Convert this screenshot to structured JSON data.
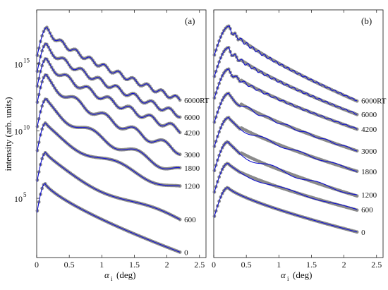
{
  "figure": {
    "ylabel": "intensity (arb. units)",
    "xlabel_symbol": "α",
    "xlabel_sub": "i",
    "xlabel_unit": "(deg)"
  },
  "colors": {
    "data": "#8a8a8a",
    "fit": "#1010d0",
    "axis": "#111111",
    "background": "#ffffff"
  },
  "chart_data": [
    {
      "type": "scatter",
      "panel_label": "(a)",
      "xlabel": "αi (deg)",
      "ylabel": "intensity (arb. units)",
      "xlim": [
        0,
        2.6
      ],
      "ylim_log10": [
        0.6,
        19
      ],
      "y_scale": "log",
      "x_ticks": [
        "0",
        "0.5",
        "1",
        "1.5",
        "2",
        "2.5"
      ],
      "y_ticks": [
        {
          "value": 5,
          "label": "10"
        },
        {
          "value": 10,
          "label": "10"
        },
        {
          "value": 15,
          "label": "10"
        }
      ],
      "y_tick_exponents": [
        "5",
        "10",
        "15"
      ],
      "grid": false,
      "legend": "none",
      "series": [
        {
          "name": "0",
          "peak_x": 0.13,
          "peak_log10": 6.1,
          "end_log10": 1.0,
          "period": 0,
          "amp": 0
        },
        {
          "name": "600",
          "peak_x": 0.14,
          "peak_log10": 8.4,
          "end_log10": 3.6,
          "period": 1.7,
          "amp": 0.45
        },
        {
          "name": "1200",
          "peak_x": 0.14,
          "peak_log10": 10.6,
          "end_log10": 6.0,
          "period": 1.1,
          "amp": 0.55
        },
        {
          "name": "1800",
          "peak_x": 0.15,
          "peak_log10": 12.4,
          "end_log10": 7.3,
          "period": 0.7,
          "amp": 0.6
        },
        {
          "name": "3000",
          "peak_x": 0.15,
          "peak_log10": 14.2,
          "end_log10": 8.8,
          "period": 0.45,
          "amp": 0.55
        },
        {
          "name": "4200",
          "peak_x": 0.15,
          "peak_log10": 15.4,
          "end_log10": 10.3,
          "period": 0.32,
          "amp": 0.45
        },
        {
          "name": "6000",
          "peak_x": 0.15,
          "peak_log10": 16.5,
          "end_log10": 11.4,
          "period": 0.27,
          "amp": 0.4
        },
        {
          "name": "6000RT",
          "peak_x": 0.16,
          "peak_log10": 17.7,
          "end_log10": 12.5,
          "period": 0.22,
          "amp": 0.35
        }
      ]
    },
    {
      "type": "scatter",
      "panel_label": "(b)",
      "xlabel": "αi (deg)",
      "xlim": [
        0,
        2.6
      ],
      "ylim_log10": [
        0.6,
        19
      ],
      "y_scale": "log",
      "x_ticks": [
        "0",
        "0.5",
        "1",
        "1.5",
        "2",
        "2.5"
      ],
      "grid": false,
      "legend": "none",
      "series": [
        {
          "name": "0",
          "peak_x": 0.22,
          "peak_log10": 5.8,
          "end_log10": 2.5,
          "period": 0,
          "amp": 0
        },
        {
          "name": "600",
          "peak_x": 0.22,
          "peak_log10": 7.6,
          "end_log10": 4.2,
          "period": 0.9,
          "amp": 0.3
        },
        {
          "name": "1200",
          "peak_x": 0.22,
          "peak_log10": 9.2,
          "end_log10": 5.3,
          "period": 0.7,
          "amp": 0.5
        },
        {
          "name": "1800",
          "peak_x": 0.23,
          "peak_log10": 11.0,
          "end_log10": 7.1,
          "period": 0.55,
          "amp": 0.35
        },
        {
          "name": "3000",
          "peak_x": 0.23,
          "peak_log10": 12.8,
          "end_log10": 8.6,
          "period": 0.3,
          "amp": 0.3
        },
        {
          "name": "4200",
          "peak_x": 0.23,
          "peak_log10": 14.6,
          "end_log10": 10.2,
          "period": 0.12,
          "amp": 0.25
        },
        {
          "name": "6000",
          "peak_x": 0.23,
          "peak_log10": 16.2,
          "end_log10": 11.3,
          "period": 0.1,
          "amp": 0.3
        },
        {
          "name": "6000RT",
          "peak_x": 0.24,
          "peak_log10": 17.8,
          "end_log10": 12.3,
          "period": 0.09,
          "amp": 0.3
        }
      ]
    }
  ]
}
